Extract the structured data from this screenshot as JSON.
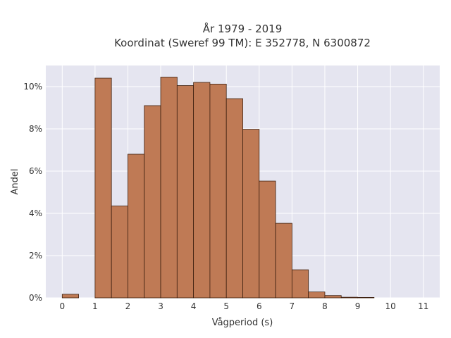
{
  "chart_data": {
    "type": "bar",
    "title_line1": "År 1979 - 2019",
    "title_line2": "Koordinat (Sweref 99 TM): E 352778, N 6300872",
    "xlabel": "Vågperiod (s)",
    "ylabel": "Andel",
    "bin_width": 0.5,
    "bins": [
      {
        "start": 0.0,
        "value": 0.0017
      },
      {
        "start": 0.5,
        "value": 0.0
      },
      {
        "start": 1.0,
        "value": 0.104
      },
      {
        "start": 1.5,
        "value": 0.0435
      },
      {
        "start": 2.0,
        "value": 0.068
      },
      {
        "start": 2.5,
        "value": 0.091
      },
      {
        "start": 3.0,
        "value": 0.1045
      },
      {
        "start": 3.5,
        "value": 0.1005
      },
      {
        "start": 4.0,
        "value": 0.102
      },
      {
        "start": 4.5,
        "value": 0.1012
      },
      {
        "start": 5.0,
        "value": 0.0943
      },
      {
        "start": 5.5,
        "value": 0.0798
      },
      {
        "start": 6.0,
        "value": 0.0553
      },
      {
        "start": 6.5,
        "value": 0.0353
      },
      {
        "start": 7.0,
        "value": 0.0133
      },
      {
        "start": 7.5,
        "value": 0.0028
      },
      {
        "start": 8.0,
        "value": 0.0011
      },
      {
        "start": 8.5,
        "value": 0.0003
      },
      {
        "start": 9.0,
        "value": 0.0002
      }
    ],
    "xlim": [
      -0.5,
      11.5
    ],
    "ylim": [
      0,
      0.11
    ],
    "x_ticks": [
      0,
      1,
      2,
      3,
      4,
      5,
      6,
      7,
      8,
      9,
      10,
      11
    ],
    "x_tick_labels": [
      "0",
      "1",
      "2",
      "3",
      "4",
      "5",
      "6",
      "7",
      "8",
      "9",
      "10",
      "11"
    ],
    "y_ticks": [
      0,
      0.02,
      0.04,
      0.06,
      0.08,
      0.1
    ],
    "y_tick_labels": [
      "0%",
      "2%",
      "4%",
      "6%",
      "8%",
      "10%"
    ],
    "grid": true,
    "colors": {
      "bar_fill": "#bf7a55",
      "bar_edge": "#3d2010",
      "plot_bg": "#e5e5f0",
      "grid": "#ffffff",
      "text": "#333333"
    }
  }
}
